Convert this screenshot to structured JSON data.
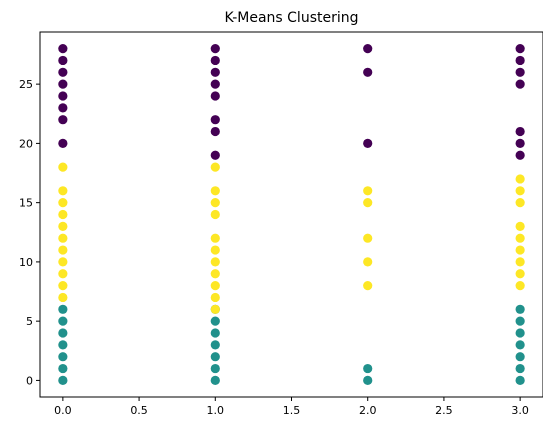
{
  "chart_data": {
    "type": "scatter",
    "title": "K-Means Clustering",
    "xlabel": "",
    "ylabel": "",
    "xlim": [
      -0.15,
      3.15
    ],
    "ylim": [
      -1.4,
      29.4
    ],
    "xticks": [
      0.0,
      0.5,
      1.0,
      1.5,
      2.0,
      2.5,
      3.0
    ],
    "xtick_labels": [
      "0.0",
      "0.5",
      "1.0",
      "1.5",
      "2.0",
      "2.5",
      "3.0"
    ],
    "yticks": [
      0,
      5,
      10,
      15,
      20,
      25
    ],
    "ytick_labels": [
      "0",
      "5",
      "10",
      "15",
      "20",
      "25"
    ],
    "grid": false,
    "legend": "none",
    "colormap": "viridis",
    "series": [
      {
        "cluster": 0,
        "color": "#440154",
        "points": [
          [
            0,
            20
          ],
          [
            0,
            22
          ],
          [
            0,
            23
          ],
          [
            0,
            24
          ],
          [
            0,
            25
          ],
          [
            0,
            26
          ],
          [
            0,
            27
          ],
          [
            0,
            28
          ],
          [
            1,
            19
          ],
          [
            1,
            21
          ],
          [
            1,
            22
          ],
          [
            1,
            24
          ],
          [
            1,
            25
          ],
          [
            1,
            26
          ],
          [
            1,
            27
          ],
          [
            1,
            28
          ],
          [
            2,
            20
          ],
          [
            2,
            26
          ],
          [
            2,
            28
          ],
          [
            3,
            19
          ],
          [
            3,
            20
          ],
          [
            3,
            21
          ],
          [
            3,
            25
          ],
          [
            3,
            26
          ],
          [
            3,
            27
          ],
          [
            3,
            28
          ]
        ]
      },
      {
        "cluster": 1,
        "color": "#21918c",
        "points": [
          [
            0,
            0
          ],
          [
            0,
            1
          ],
          [
            0,
            2
          ],
          [
            0,
            3
          ],
          [
            0,
            4
          ],
          [
            0,
            5
          ],
          [
            0,
            6
          ],
          [
            1,
            0
          ],
          [
            1,
            1
          ],
          [
            1,
            2
          ],
          [
            1,
            3
          ],
          [
            1,
            4
          ],
          [
            1,
            5
          ],
          [
            1,
            6
          ],
          [
            2,
            0
          ],
          [
            2,
            1
          ],
          [
            3,
            0
          ],
          [
            3,
            1
          ],
          [
            3,
            2
          ],
          [
            3,
            3
          ],
          [
            3,
            4
          ],
          [
            3,
            5
          ],
          [
            3,
            6
          ]
        ]
      },
      {
        "cluster": 2,
        "color": "#fde725",
        "points": [
          [
            0,
            7
          ],
          [
            0,
            8
          ],
          [
            0,
            9
          ],
          [
            0,
            10
          ],
          [
            0,
            11
          ],
          [
            0,
            12
          ],
          [
            0,
            13
          ],
          [
            0,
            14
          ],
          [
            0,
            15
          ],
          [
            0,
            16
          ],
          [
            0,
            18
          ],
          [
            1,
            6
          ],
          [
            1,
            7
          ],
          [
            1,
            8
          ],
          [
            1,
            9
          ],
          [
            1,
            10
          ],
          [
            1,
            11
          ],
          [
            1,
            12
          ],
          [
            1,
            14
          ],
          [
            1,
            15
          ],
          [
            1,
            16
          ],
          [
            1,
            18
          ],
          [
            2,
            8
          ],
          [
            2,
            10
          ],
          [
            2,
            12
          ],
          [
            2,
            15
          ],
          [
            2,
            16
          ],
          [
            3,
            8
          ],
          [
            3,
            9
          ],
          [
            3,
            10
          ],
          [
            3,
            11
          ],
          [
            3,
            12
          ],
          [
            3,
            13
          ],
          [
            3,
            15
          ],
          [
            3,
            16
          ],
          [
            3,
            17
          ]
        ]
      }
    ]
  }
}
